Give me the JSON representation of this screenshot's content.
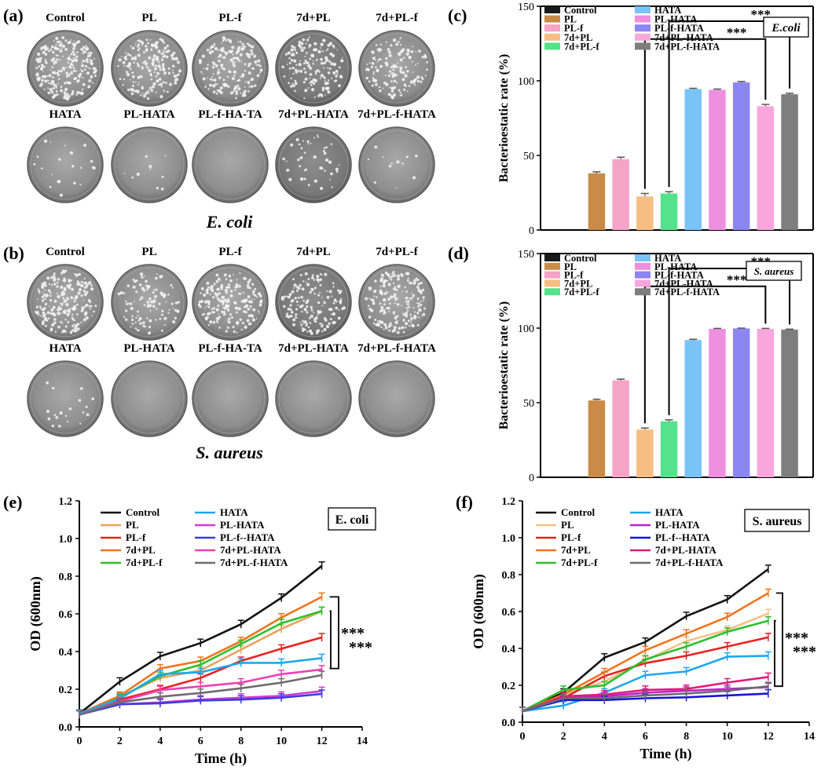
{
  "panels": {
    "a": {
      "label": "(a)",
      "caption": "E. coli",
      "top_labels": [
        "Control",
        "PL",
        "PL-f",
        "7d+PL",
        "7d+PL-f"
      ],
      "bottom_labels": [
        "HATA",
        "PL-HATA",
        "PL-f-HA-TA",
        "7d+PL-HATA",
        "7d+PL-f-HATA"
      ]
    },
    "b": {
      "label": "(b)",
      "caption": "S. aureus",
      "top_labels": [
        "Control",
        "PL",
        "PL-f",
        "7d+PL",
        "7d+PL-f"
      ],
      "bottom_labels": [
        "HATA",
        "PL-HATA",
        "PL-f-HA-TA",
        "7d+PL-HATA",
        "7d+PL-f-HATA"
      ]
    },
    "c": {
      "label": "(c)"
    },
    "d": {
      "label": "(d)"
    },
    "e": {
      "label": "(e)"
    },
    "f": {
      "label": "(f)"
    }
  },
  "colors": {
    "Control": "#1a1a1a",
    "PL": "#c98b47",
    "PL-f": "#f5a3c7",
    "7d+PL": "#f6be82",
    "7d+PL-f": "#54e38a",
    "HATA": "#79c4f6",
    "PL-HATA": "#ef8fe0",
    "PL-f-HATA": "#8b86f1",
    "7d+PL-HATA": "#f8a6dc",
    "7d+PL-f-HATA": "#7e7e7e"
  },
  "chart_data": [
    {
      "panel": "c",
      "type": "bar",
      "title": "",
      "categories": [
        "Control",
        "PL",
        "PL-f",
        "7d+PL",
        "7d+PL-f",
        "HATA",
        "PL-HATA",
        "PL-f-HATA",
        "7d+PL-HATA",
        "7d+PL-f-HATA"
      ],
      "values": [
        0,
        38,
        47.5,
        22.5,
        24.5,
        94.5,
        94,
        99,
        83,
        91
      ],
      "errors": [
        0,
        1,
        1.3,
        2,
        1.2,
        0.5,
        0.5,
        0.6,
        1.2,
        0.7
      ],
      "legend": [
        "Control",
        "PL",
        "PL-f",
        "7d+PL",
        "7d+PL-f",
        "HATA",
        "PL-HATA",
        "PL-f-HATA",
        "7d+PL-HATA",
        "7d+PL-f-HATA"
      ],
      "inset": "E.coli",
      "ylabel": "Bacterioestatic rate (%)",
      "ylim": [
        0,
        150
      ],
      "yticks": [
        "0",
        "50",
        "100",
        "150"
      ],
      "significance": [
        "***",
        "***"
      ]
    },
    {
      "panel": "d",
      "type": "bar",
      "title": "",
      "categories": [
        "Control",
        "PL",
        "PL-f",
        "7d+PL",
        "7d+PL-f",
        "HATA",
        "PL-HATA",
        "PL-f-HATA",
        "7d+PL-HATA",
        "7d+PL-f-HATA"
      ],
      "values": [
        0,
        51.5,
        65,
        32,
        37.5,
        92,
        99.5,
        99.8,
        99.5,
        99
      ],
      "errors": [
        0,
        0.8,
        0.8,
        1,
        1,
        0.5,
        0.3,
        0.2,
        0.3,
        0.3
      ],
      "legend": [
        "Control",
        "PL",
        "PL-f",
        "7d+PL",
        "7d+PL-f",
        "HATA",
        "PL-HATA",
        "PL-f-HATA",
        "7d+PL-HATA",
        "7d+PL-f-HATA"
      ],
      "inset": "S. aureus",
      "ylabel": "Bacterioestatic rate (%)",
      "ylim": [
        0,
        150
      ],
      "yticks": [
        "0",
        "50",
        "100",
        "150"
      ],
      "significance": [
        "***",
        "***"
      ]
    },
    {
      "panel": "e",
      "type": "line",
      "title": "",
      "x": [
        0,
        2,
        4,
        6,
        8,
        10,
        12
      ],
      "series": [
        {
          "name": "Control",
          "values": [
            0.07,
            0.24,
            0.375,
            0.445,
            0.545,
            0.685,
            0.855
          ]
        },
        {
          "name": "PL",
          "values": [
            0.07,
            0.16,
            0.26,
            0.3,
            0.41,
            0.52,
            0.615
          ]
        },
        {
          "name": "PL-f",
          "values": [
            0.07,
            0.145,
            0.2,
            0.26,
            0.35,
            0.415,
            0.475
          ]
        },
        {
          "name": "7d+PL",
          "values": [
            0.07,
            0.165,
            0.31,
            0.35,
            0.455,
            0.58,
            0.69
          ]
        },
        {
          "name": "7d+PL-f",
          "values": [
            0.065,
            0.155,
            0.27,
            0.33,
            0.44,
            0.55,
            0.615
          ]
        },
        {
          "name": "HATA",
          "values": [
            0.07,
            0.15,
            0.28,
            0.29,
            0.34,
            0.34,
            0.365
          ]
        },
        {
          "name": "PL-HATA",
          "values": [
            0.065,
            0.12,
            0.13,
            0.145,
            0.155,
            0.165,
            0.19
          ]
        },
        {
          "name": "PL-f--HATA",
          "values": [
            0.065,
            0.12,
            0.125,
            0.14,
            0.145,
            0.155,
            0.175
          ]
        },
        {
          "name": "7d+PL-HATA",
          "values": [
            0.065,
            0.135,
            0.195,
            0.215,
            0.235,
            0.28,
            0.305
          ]
        },
        {
          "name": "7d+PL-f-HATA",
          "values": [
            0.065,
            0.13,
            0.16,
            0.18,
            0.205,
            0.235,
            0.275
          ]
        }
      ],
      "legend": [
        "Control",
        "PL",
        "PL-f",
        "7d+PL",
        "7d+PL-f",
        "HATA",
        "PL-HATA",
        "PL-f--HATA",
        "7d+PL-HATA",
        "7d+PL-f-HATA"
      ],
      "inset": "E. coli",
      "xlabel": "Time (h)",
      "ylabel": "OD (600nm)",
      "xlim": [
        0,
        14
      ],
      "ylim": [
        0,
        1.2
      ],
      "xticks": [
        "0",
        "2",
        "4",
        "6",
        "8",
        "10",
        "12",
        "14"
      ],
      "yticks": [
        "0.0",
        "0.2",
        "0.4",
        "0.6",
        "0.8",
        "1.0",
        "1.2"
      ],
      "significance": [
        "***",
        "***"
      ]
    },
    {
      "panel": "f",
      "type": "line",
      "title": "",
      "x": [
        0,
        2,
        4,
        6,
        8,
        10,
        12
      ],
      "series": [
        {
          "name": "Control",
          "values": [
            0.06,
            0.16,
            0.35,
            0.435,
            0.575,
            0.665,
            0.83
          ]
        },
        {
          "name": "PL",
          "values": [
            0.06,
            0.15,
            0.22,
            0.335,
            0.44,
            0.5,
            0.59
          ]
        },
        {
          "name": "PL-f",
          "values": [
            0.06,
            0.13,
            0.25,
            0.32,
            0.36,
            0.41,
            0.46
          ]
        },
        {
          "name": "7d+PL",
          "values": [
            0.06,
            0.15,
            0.27,
            0.39,
            0.48,
            0.57,
            0.7
          ]
        },
        {
          "name": "7d+PL-f",
          "values": [
            0.06,
            0.175,
            0.2,
            0.34,
            0.41,
            0.49,
            0.55
          ]
        },
        {
          "name": "HATA",
          "values": [
            0.06,
            0.09,
            0.16,
            0.255,
            0.275,
            0.355,
            0.36
          ]
        },
        {
          "name": "PL-HATA",
          "values": [
            0.06,
            0.13,
            0.14,
            0.16,
            0.17,
            0.18,
            0.19
          ]
        },
        {
          "name": "PL-f--HATA",
          "values": [
            0.06,
            0.12,
            0.12,
            0.13,
            0.135,
            0.145,
            0.155
          ]
        },
        {
          "name": "7d+PL-HATA",
          "values": [
            0.06,
            0.14,
            0.15,
            0.175,
            0.18,
            0.215,
            0.245
          ]
        },
        {
          "name": "7d+PL-f-HATA",
          "values": [
            0.06,
            0.13,
            0.13,
            0.145,
            0.155,
            0.17,
            0.195
          ]
        }
      ],
      "legend": [
        "Control",
        "PL",
        "PL-f",
        "7d+PL",
        "7d+PL-f",
        "HATA",
        "PL-HATA",
        "PL-f--HATA",
        "7d+PL-HATA",
        "7d+PL-f-HATA"
      ],
      "inset": "S. aureus",
      "xlabel": "Time (h)",
      "ylabel": "OD (600nm)",
      "xlim": [
        0,
        14
      ],
      "ylim": [
        0,
        1.2
      ],
      "xticks": [
        "0",
        "2",
        "4",
        "6",
        "8",
        "10",
        "12",
        "14"
      ],
      "yticks": [
        "0.0",
        "0.2",
        "0.4",
        "0.6",
        "0.8",
        "1.0",
        "1.2"
      ],
      "significance": [
        "***",
        "***"
      ]
    }
  ]
}
